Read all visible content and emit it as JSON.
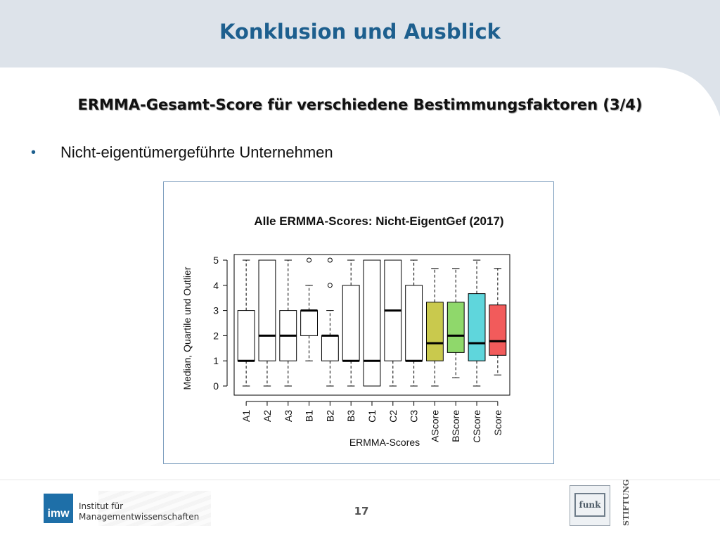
{
  "slide": {
    "title": "Konklusion und Ausblick",
    "subtitle": "ERMMA-Gesamt-Score für verschiedene Bestimmungsfaktoren (3/4)",
    "bullet": "Nicht-eigentümergeführte Unternehmen",
    "page_number": "17"
  },
  "footer": {
    "logo_text": "imw",
    "institute_line1": "Institut für",
    "institute_line2": "Managementwissenschaften",
    "partner_logo_text": "funk",
    "partner_label": "STIFTUNG"
  },
  "chart_data": {
    "type": "box",
    "title": "Alle ERMMA-Scores: Nicht-EigentGef (2017)",
    "xlabel": "ERMMA-Scores",
    "ylabel": "Median, Quartile und Outlier",
    "ylim": [
      0,
      5
    ],
    "yticks": [
      0,
      1,
      2,
      3,
      4,
      5
    ],
    "grid": false,
    "boxes": [
      {
        "label": "A1",
        "min": 0,
        "q1": 1,
        "median": 1,
        "q3": 3,
        "max": 5,
        "outliers": [],
        "color": "#ffffff"
      },
      {
        "label": "A2",
        "min": 0,
        "q1": 1,
        "median": 2,
        "q3": 5,
        "max": 5,
        "outliers": [],
        "color": "#ffffff"
      },
      {
        "label": "A3",
        "min": 0,
        "q1": 1,
        "median": 2,
        "q3": 3,
        "max": 5,
        "outliers": [],
        "color": "#ffffff"
      },
      {
        "label": "B1",
        "min": 1,
        "q1": 2,
        "median": 3,
        "q3": 3,
        "max": 4,
        "outliers": [
          5
        ],
        "color": "#ffffff"
      },
      {
        "label": "B2",
        "min": 0,
        "q1": 1,
        "median": 2,
        "q3": 2,
        "max": 3,
        "outliers": [
          4,
          5
        ],
        "color": "#ffffff"
      },
      {
        "label": "B3",
        "min": 0,
        "q1": 1,
        "median": 1,
        "q3": 4,
        "max": 5,
        "outliers": [],
        "color": "#ffffff"
      },
      {
        "label": "C1",
        "min": 0,
        "q1": 0,
        "median": 1,
        "q3": 5,
        "max": 5,
        "outliers": [],
        "color": "#ffffff"
      },
      {
        "label": "C2",
        "min": 0,
        "q1": 1,
        "median": 3,
        "q3": 5,
        "max": 5,
        "outliers": [],
        "color": "#ffffff"
      },
      {
        "label": "C3",
        "min": 0,
        "q1": 1,
        "median": 1,
        "q3": 4,
        "max": 5,
        "outliers": [],
        "color": "#ffffff"
      },
      {
        "label": "AScore",
        "min": 0,
        "q1": 1,
        "median": 1.7,
        "q3": 3.33,
        "max": 4.67,
        "outliers": [],
        "color": "#c9c94d"
      },
      {
        "label": "BScore",
        "min": 0.33,
        "q1": 1.33,
        "median": 2,
        "q3": 3.33,
        "max": 4.67,
        "outliers": [],
        "color": "#8fd86b"
      },
      {
        "label": "CScore",
        "min": 0,
        "q1": 1,
        "median": 1.7,
        "q3": 3.67,
        "max": 5,
        "outliers": [],
        "color": "#5fd6dc"
      },
      {
        "label": "Score",
        "min": 0.44,
        "q1": 1.22,
        "median": 1.78,
        "q3": 3.22,
        "max": 4.67,
        "outliers": [],
        "color": "#f25b5b"
      }
    ]
  }
}
